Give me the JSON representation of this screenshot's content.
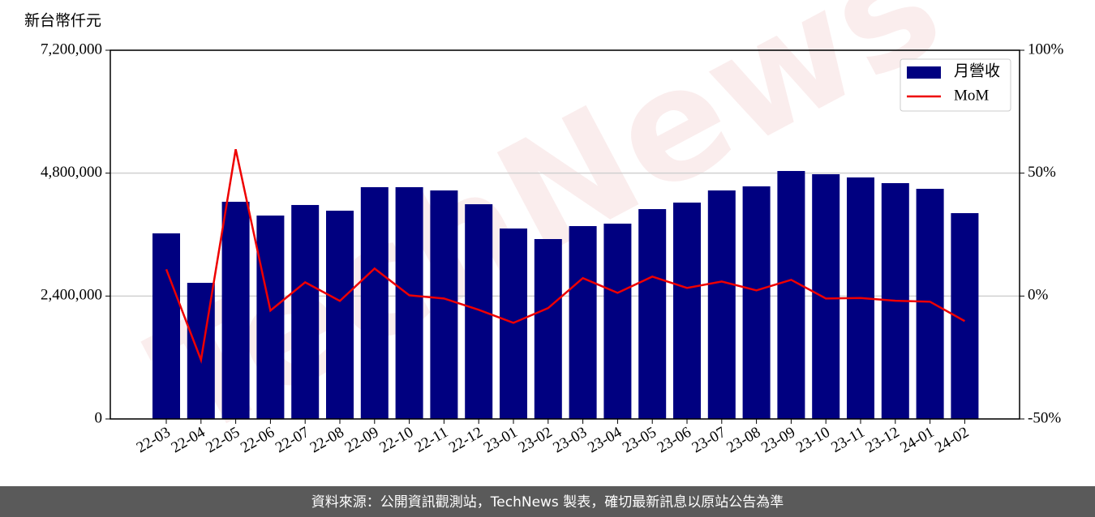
{
  "chart_data": {
    "type": "bar",
    "y_axis_label": "新台幣仟元",
    "watermark": "TechNews",
    "footer": "資料來源：公開資訊觀測站，TechNews 製表，確切最新訊息以原站公告為準",
    "categories": [
      "22-03",
      "22-04",
      "22-05",
      "22-06",
      "22-07",
      "22-08",
      "22-09",
      "22-10",
      "22-11",
      "22-12",
      "23-01",
      "23-02",
      "23-03",
      "23-04",
      "23-05",
      "23-06",
      "23-07",
      "23-08",
      "23-09",
      "23-10",
      "23-11",
      "23-12",
      "24-01",
      "24-02"
    ],
    "series": [
      {
        "name": "月營收",
        "type": "bar",
        "color": "#000080",
        "axis": "y",
        "values": [
          3624000,
          2658000,
          4241000,
          3972000,
          4178000,
          4067000,
          4526000,
          4526000,
          4462000,
          4193000,
          3719000,
          3513000,
          3766000,
          3814000,
          4098000,
          4225000,
          4462000,
          4542000,
          4842000,
          4779000,
          4716000,
          4605000,
          4494000,
          4019000
        ]
      },
      {
        "name": "MoM",
        "type": "line",
        "color": "#ee0000",
        "axis": "y2",
        "values": [
          10.9,
          -26,
          59.7,
          -5.9,
          5.6,
          -2.0,
          11.2,
          0.3,
          -1.0,
          -5.6,
          -10.9,
          -4.9,
          7.3,
          1.3,
          7.9,
          3.3,
          5.9,
          2.3,
          6.6,
          -1.0,
          -0.8,
          -1.9,
          -2.3,
          -10.2
        ]
      }
    ],
    "ylim": [
      0,
      7200000
    ],
    "yticks": [
      0,
      {
        "value": 2400000,
        "label": "2,400,000"
      },
      {
        "value": 4800000,
        "label": "4,800,000"
      },
      {
        "value": 7200000,
        "label": "7,200,000"
      }
    ],
    "y2lim": [
      -50,
      100
    ],
    "y2ticks": [
      {
        "value": -50,
        "label": "-50%"
      },
      {
        "value": 0,
        "label": "0%"
      },
      {
        "value": 50,
        "label": "50%"
      },
      {
        "value": 100,
        "label": "100%"
      }
    ],
    "grid": true,
    "legend": "upper right"
  }
}
